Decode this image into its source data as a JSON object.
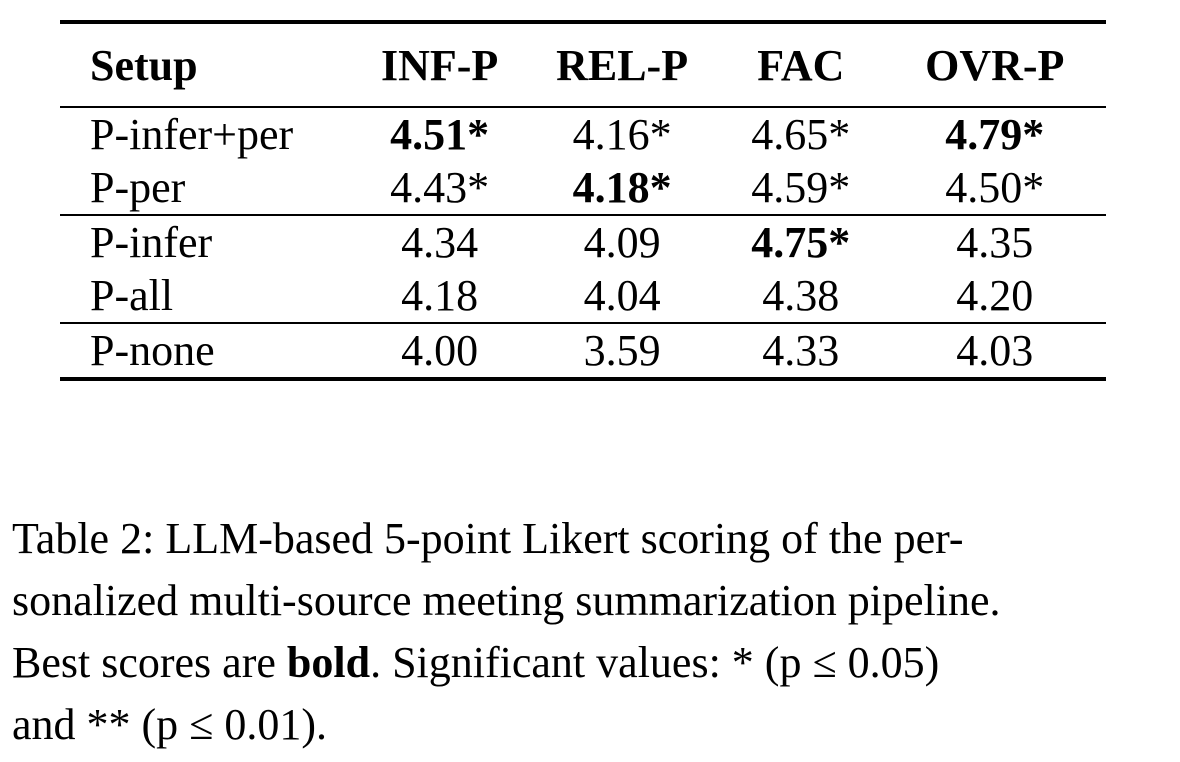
{
  "table": {
    "headers": [
      "Setup",
      "INF-P",
      "REL-P",
      "FAC",
      "OVR-P"
    ],
    "groups": [
      {
        "rows": [
          {
            "setup": "P-infer+per",
            "cells": [
              {
                "v": "4.51*",
                "bold": true
              },
              {
                "v": "4.16*",
                "bold": false
              },
              {
                "v": "4.65*",
                "bold": false
              },
              {
                "v": "4.79*",
                "bold": true
              }
            ]
          },
          {
            "setup": "P-per",
            "cells": [
              {
                "v": "4.43*",
                "bold": false
              },
              {
                "v": "4.18*",
                "bold": true
              },
              {
                "v": "4.59*",
                "bold": false
              },
              {
                "v": "4.50*",
                "bold": false
              }
            ]
          }
        ]
      },
      {
        "rows": [
          {
            "setup": "P-infer",
            "cells": [
              {
                "v": "4.34",
                "bold": false
              },
              {
                "v": "4.09",
                "bold": false
              },
              {
                "v": "4.75*",
                "bold": true
              },
              {
                "v": "4.35",
                "bold": false
              }
            ]
          },
          {
            "setup": "P-all",
            "cells": [
              {
                "v": "4.18",
                "bold": false
              },
              {
                "v": "4.04",
                "bold": false
              },
              {
                "v": "4.38",
                "bold": false
              },
              {
                "v": "4.20",
                "bold": false
              }
            ]
          }
        ]
      },
      {
        "rows": [
          {
            "setup": "P-none",
            "cells": [
              {
                "v": "4.00",
                "bold": false
              },
              {
                "v": "3.59",
                "bold": false
              },
              {
                "v": "4.33",
                "bold": false
              },
              {
                "v": "4.03",
                "bold": false
              }
            ]
          }
        ]
      }
    ]
  },
  "caption": {
    "line1": "Table 2: LLM-based 5-point Likert scoring of the per-",
    "line2": "sonalized multi-source meeting summarization pipeline.",
    "line3_pre": "Best scores are ",
    "line3_bold": "bold",
    "line3_post": ". Significant values: * (p ≤ 0.05)",
    "line4": "and ** (p ≤ 0.01)."
  }
}
